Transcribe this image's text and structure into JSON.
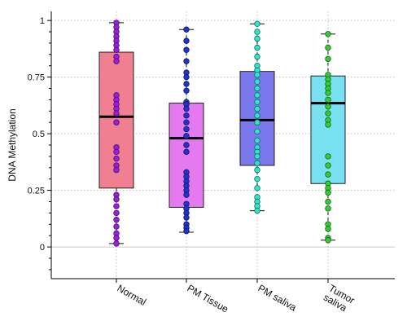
{
  "chart_data": {
    "type": "box",
    "title": "",
    "xlabel": "",
    "ylabel": "DNA Methylation",
    "ylim": [
      -0.14,
      1.04
    ],
    "yticks": [
      0,
      0.25,
      0.5,
      0.75,
      1
    ],
    "ytick_labels": [
      "0",
      "0.25",
      "0.5",
      "0.75",
      "1"
    ],
    "grid": true,
    "categories": [
      {
        "label": "Normal",
        "box_color": "#f07f92",
        "point_color": "#9b1fd9",
        "point_edge": "#4b0b73",
        "median": 0.575,
        "q1": 0.26,
        "q3": 0.86,
        "whisker_low": 0.015,
        "whisker_high": 0.99,
        "points": [
          0.99,
          0.97,
          0.95,
          0.93,
          0.91,
          0.89,
          0.87,
          0.84,
          0.82,
          0.67,
          0.65,
          0.63,
          0.61,
          0.59,
          0.55,
          0.44,
          0.42,
          0.39,
          0.36,
          0.34,
          0.23,
          0.21,
          0.18,
          0.15,
          0.12,
          0.09,
          0.06,
          0.04,
          0.015
        ]
      },
      {
        "label": "PM Tissue",
        "box_color": "#e57af0",
        "point_color": "#2233cc",
        "point_edge": "#0d1a66",
        "median": 0.48,
        "q1": 0.175,
        "q3": 0.635,
        "whisker_low": 0.065,
        "whisker_high": 0.96,
        "points": [
          0.96,
          0.91,
          0.87,
          0.82,
          0.77,
          0.75,
          0.72,
          0.69,
          0.64,
          0.63,
          0.61,
          0.58,
          0.55,
          0.52,
          0.49,
          0.45,
          0.42,
          0.33,
          0.31,
          0.29,
          0.27,
          0.25,
          0.23,
          0.19,
          0.17,
          0.15,
          0.13,
          0.1,
          0.085,
          0.07
        ]
      },
      {
        "label": "PM saliva",
        "box_color": "#7b78ee",
        "point_color": "#2ee6c8",
        "point_edge": "#0d6b5e",
        "median": 0.56,
        "q1": 0.36,
        "q3": 0.775,
        "whisker_low": 0.16,
        "whisker_high": 0.985,
        "points": [
          0.985,
          0.95,
          0.92,
          0.88,
          0.84,
          0.8,
          0.78,
          0.76,
          0.73,
          0.7,
          0.67,
          0.64,
          0.61,
          0.58,
          0.55,
          0.51,
          0.47,
          0.44,
          0.42,
          0.4,
          0.37,
          0.34,
          0.3,
          0.26,
          0.22,
          0.2,
          0.18,
          0.16
        ]
      },
      {
        "label": "Tumor\nsaliva",
        "box_color": "#78e0f0",
        "point_color": "#33cc33",
        "point_edge": "#156615",
        "median": 0.635,
        "q1": 0.28,
        "q3": 0.755,
        "whisker_low": 0.03,
        "whisker_high": 0.94,
        "points": [
          0.94,
          0.88,
          0.83,
          0.76,
          0.74,
          0.72,
          0.7,
          0.68,
          0.65,
          0.62,
          0.59,
          0.56,
          0.54,
          0.4,
          0.36,
          0.32,
          0.28,
          0.26,
          0.24,
          0.2,
          0.17,
          0.1,
          0.08,
          0.04,
          0.03
        ]
      }
    ]
  }
}
